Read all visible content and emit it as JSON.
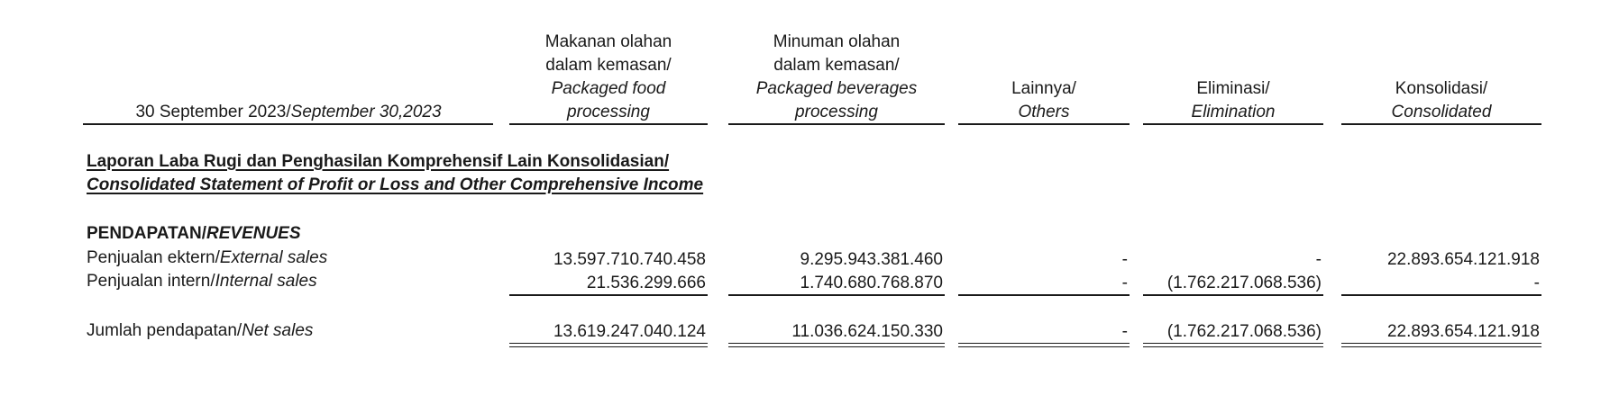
{
  "columns": {
    "period": {
      "plain": "30 September 2023/",
      "italic": "September 30,2023"
    },
    "food": {
      "lines": [
        "Makanan olahan",
        "dalam kemasan/"
      ],
      "italic_lines": [
        "Packaged food",
        "processing"
      ]
    },
    "beverages": {
      "lines": [
        "Minuman olahan",
        "dalam kemasan/"
      ],
      "italic_lines": [
        "Packaged beverages",
        "processing"
      ]
    },
    "others": {
      "lines": [
        "Lainnya/"
      ],
      "italic_lines": [
        "Others"
      ]
    },
    "elimination": {
      "lines": [
        "Eliminasi/"
      ],
      "italic_lines": [
        "Elimination"
      ]
    },
    "consolidated": {
      "lines": [
        "Konsolidasi/"
      ],
      "italic_lines": [
        "Consolidated"
      ]
    }
  },
  "statement_title": {
    "line1": "Laporan Laba Rugi dan Penghasilan Komprehensif Lain Konsolidasian/",
    "line2": "Consolidated Statement of Profit or Loss and Other Comprehensive Income"
  },
  "section": {
    "plain": "PENDAPATAN/",
    "italic": "REVENUES"
  },
  "rows": [
    {
      "label_plain": "Penjualan ektern/",
      "label_italic": "External sales",
      "food": "13.597.710.740.458",
      "beverages": "9.295.943.381.460",
      "others": "-",
      "elimination": "-",
      "consolidated": "22.893.654.121.918"
    },
    {
      "label_plain": "Penjualan intern/",
      "label_italic": "Internal sales",
      "food": "21.536.299.666",
      "beverages": "1.740.680.768.870",
      "others": "-",
      "elimination": "(1.762.217.068.536)",
      "consolidated": "-"
    }
  ],
  "total": {
    "label_plain": "Jumlah pendapatan/",
    "label_italic": "Net sales",
    "food": "13.619.247.040.124",
    "beverages": "11.036.624.150.330",
    "others": "-",
    "elimination": "(1.762.217.068.536)",
    "consolidated": "22.893.654.121.918"
  }
}
